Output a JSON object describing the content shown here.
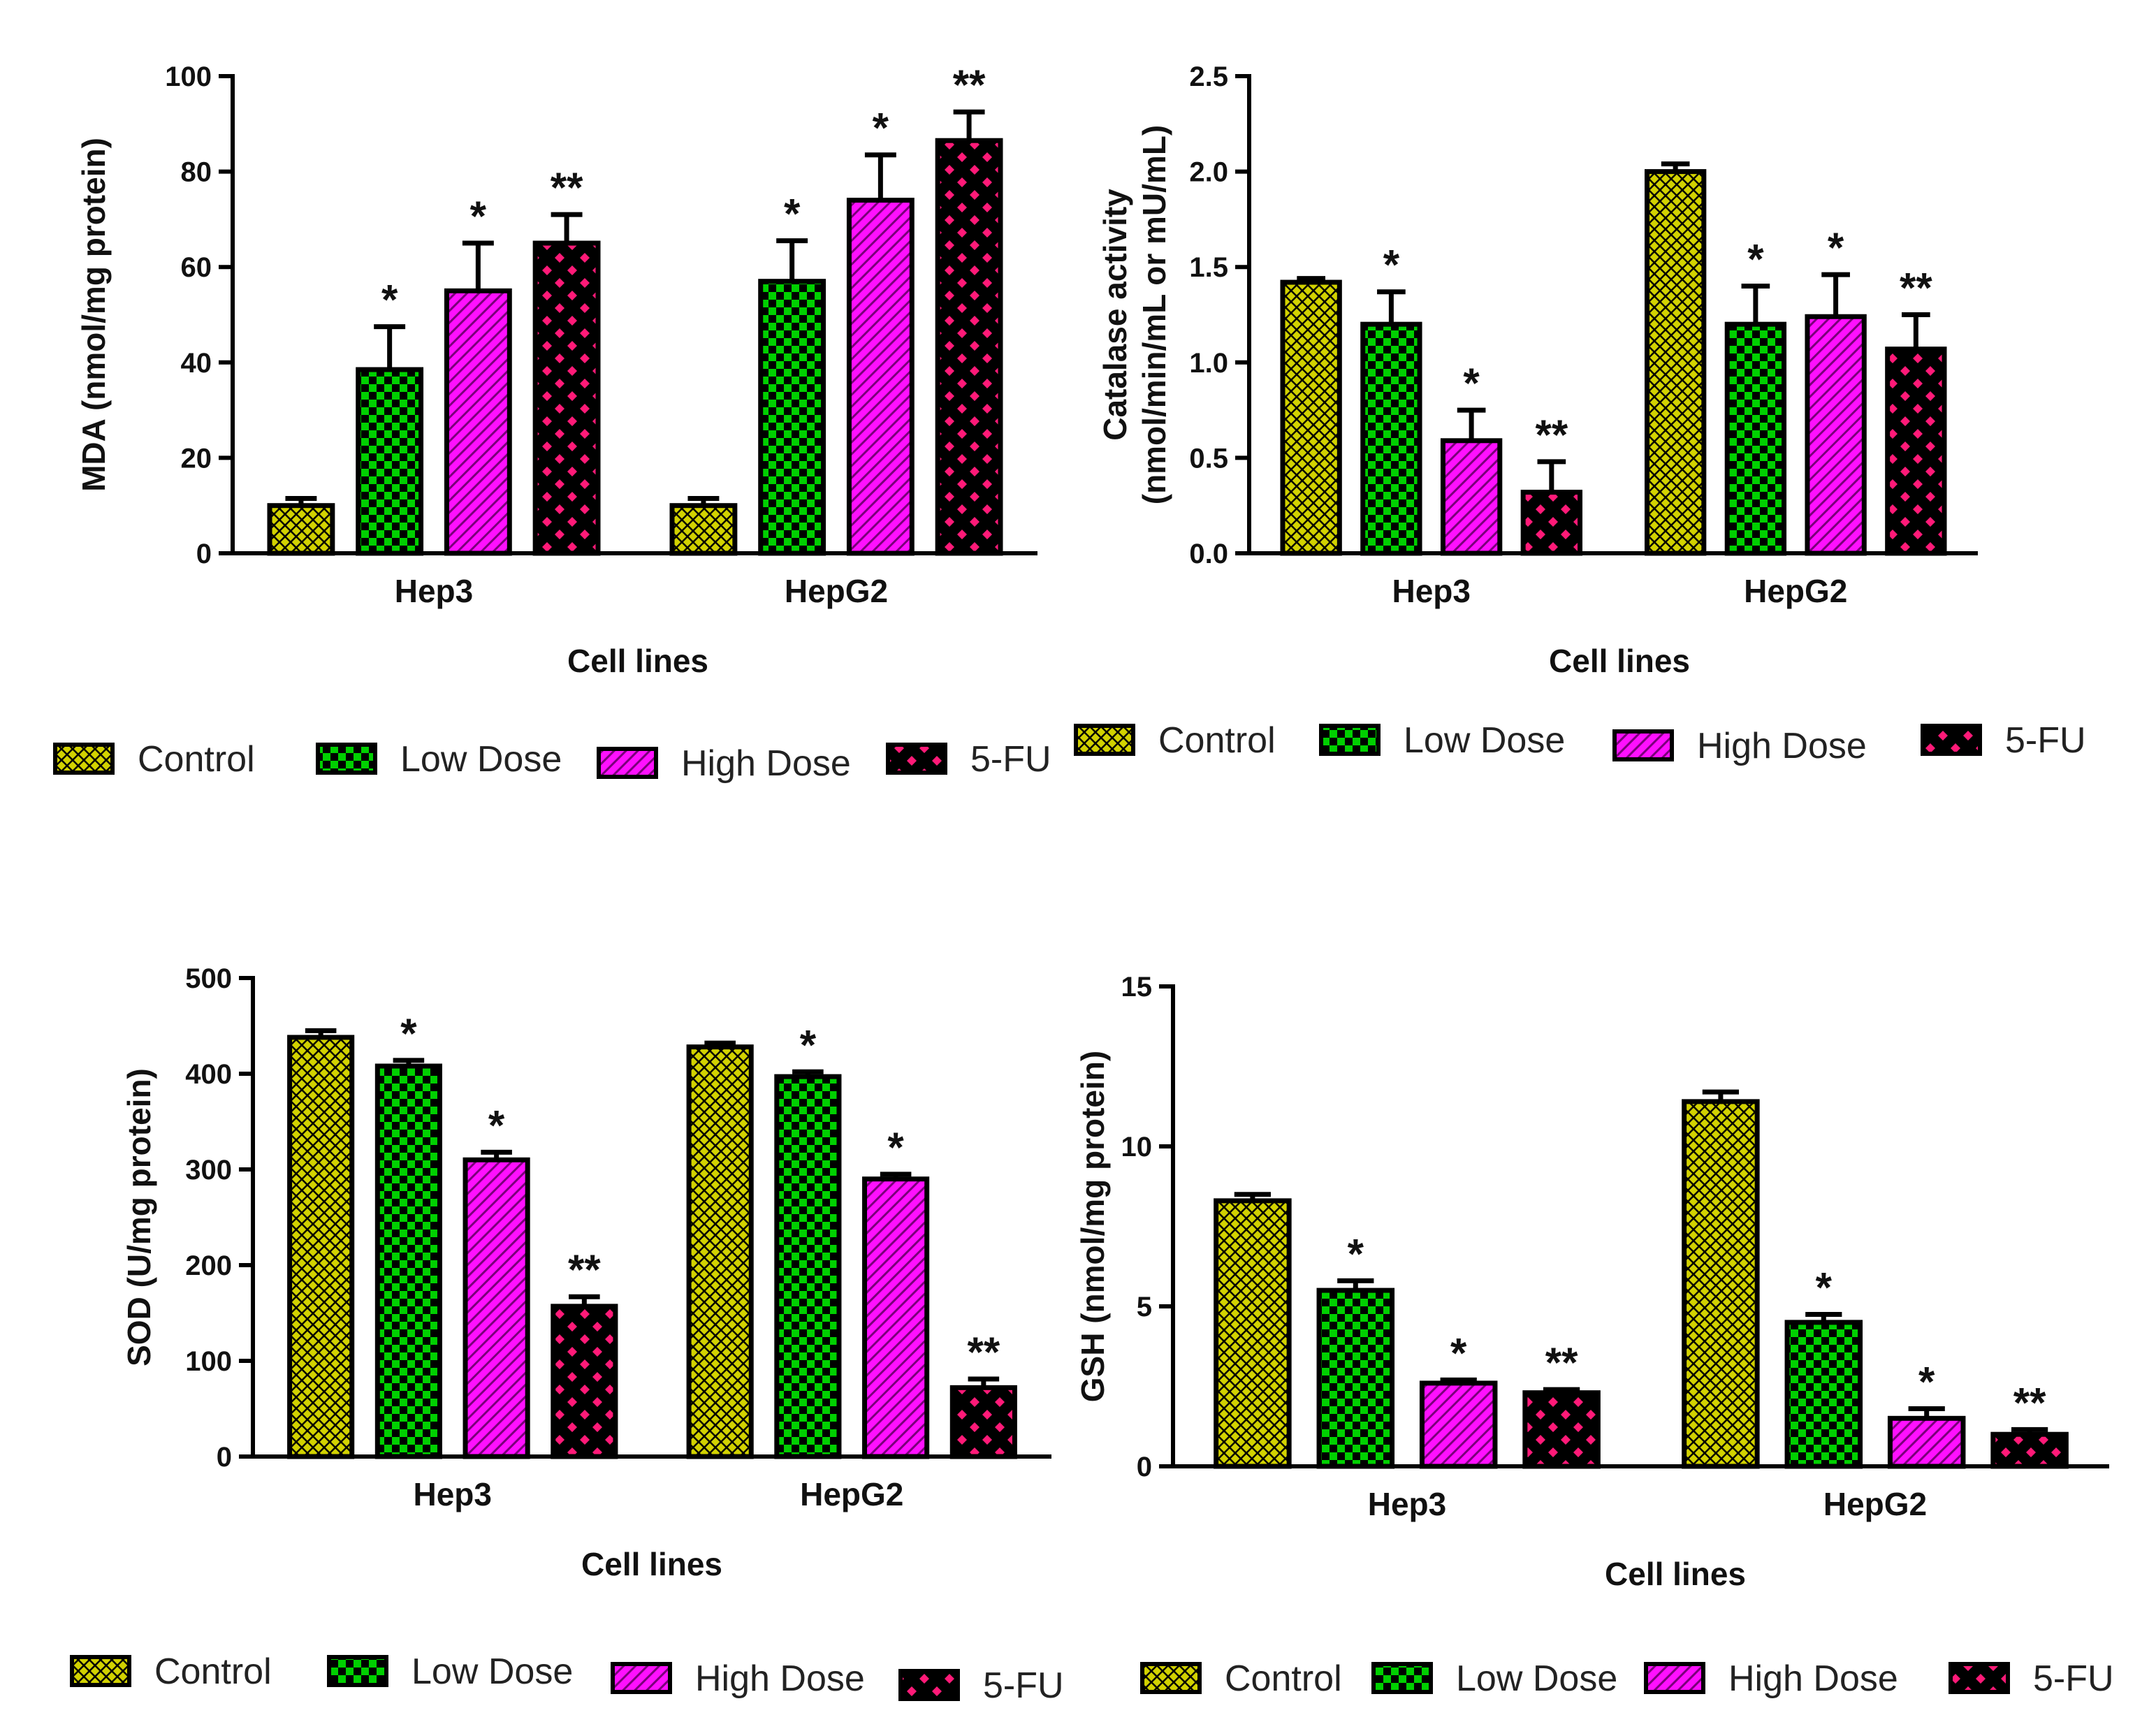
{
  "colors": {
    "control": "#d2d200",
    "low": "#00d000",
    "high": "#ff10ff",
    "fu": "#ff1a78"
  },
  "legend": [
    "Control",
    "Low Dose",
    "High Dose",
    "5-FU"
  ],
  "chart_data": [
    {
      "type": "bar",
      "title": "",
      "ylabel": [
        "MDA (nmol/mg protein)"
      ],
      "xlabel": "Cell lines",
      "categories": [
        "Hep3",
        "HepG2"
      ],
      "ylim": [
        0,
        100
      ],
      "yticks": [
        "0",
        "20",
        "40",
        "60",
        "80",
        "100"
      ],
      "series": [
        {
          "name": "Control",
          "values": [
            10,
            10
          ],
          "errors": [
            1.5,
            1.5
          ],
          "sig": [
            "",
            ""
          ]
        },
        {
          "name": "Low Dose",
          "values": [
            38.5,
            57
          ],
          "errors": [
            9,
            8.5
          ],
          "sig": [
            "*",
            "*"
          ]
        },
        {
          "name": "High Dose",
          "values": [
            55,
            74
          ],
          "errors": [
            10,
            9.5
          ],
          "sig": [
            "*",
            "*"
          ]
        },
        {
          "name": "5-FU",
          "values": [
            65,
            86.5
          ],
          "errors": [
            6,
            6
          ],
          "sig": [
            "**",
            "**"
          ]
        }
      ]
    },
    {
      "type": "bar",
      "title": "",
      "ylabel": [
        "Catalase activity",
        "(nmol/min/mL or mU/mL)"
      ],
      "xlabel": "Cell lines",
      "categories": [
        "Hep3",
        "HepG2"
      ],
      "ylim": [
        0,
        2.5
      ],
      "yticks": [
        "0.0",
        "0.5",
        "1.0",
        "1.5",
        "2.0",
        "2.5"
      ],
      "series": [
        {
          "name": "Control",
          "values": [
            1.42,
            2.0
          ],
          "errors": [
            0.02,
            0.04
          ],
          "sig": [
            "",
            ""
          ]
        },
        {
          "name": "Low Dose",
          "values": [
            1.2,
            1.2
          ],
          "errors": [
            0.17,
            0.2
          ],
          "sig": [
            "*",
            "*"
          ]
        },
        {
          "name": "High Dose",
          "values": [
            0.59,
            1.24
          ],
          "errors": [
            0.16,
            0.22
          ],
          "sig": [
            "*",
            "*"
          ]
        },
        {
          "name": "5-FU",
          "values": [
            0.32,
            1.07
          ],
          "errors": [
            0.16,
            0.18
          ],
          "sig": [
            "**",
            "**"
          ]
        }
      ]
    },
    {
      "type": "bar",
      "title": "",
      "ylabel": [
        "SOD (U/mg protein)"
      ],
      "xlabel": "Cell lines",
      "categories": [
        "Hep3",
        "HepG2"
      ],
      "ylim": [
        0,
        500
      ],
      "yticks": [
        "0",
        "100",
        "200",
        "300",
        "400",
        "500"
      ],
      "series": [
        {
          "name": "Control",
          "values": [
            438,
            428
          ],
          "errors": [
            7,
            4
          ],
          "sig": [
            "",
            ""
          ]
        },
        {
          "name": "Low Dose",
          "values": [
            408,
            397
          ],
          "errors": [
            6,
            5
          ],
          "sig": [
            "*",
            "*"
          ]
        },
        {
          "name": "High Dose",
          "values": [
            310,
            290
          ],
          "errors": [
            8,
            5
          ],
          "sig": [
            "*",
            "*"
          ]
        },
        {
          "name": "5-FU",
          "values": [
            157,
            72
          ],
          "errors": [
            10,
            9
          ],
          "sig": [
            "**",
            "**"
          ]
        }
      ]
    },
    {
      "type": "bar",
      "title": "",
      "ylabel": [
        "GSH  (nmol/mg protein)"
      ],
      "xlabel": "Cell lines",
      "categories": [
        "Hep3",
        "HepG2"
      ],
      "ylim": [
        0,
        15
      ],
      "yticks": [
        "0",
        "5",
        "10",
        "15"
      ],
      "series": [
        {
          "name": "Control",
          "values": [
            8.3,
            11.4
          ],
          "errors": [
            0.2,
            0.3
          ],
          "sig": [
            "",
            ""
          ]
        },
        {
          "name": "Low Dose",
          "values": [
            5.5,
            4.5
          ],
          "errors": [
            0.3,
            0.25
          ],
          "sig": [
            "*",
            "*"
          ]
        },
        {
          "name": "High Dose",
          "values": [
            2.6,
            1.5
          ],
          "errors": [
            0.1,
            0.3
          ],
          "sig": [
            "*",
            "*"
          ]
        },
        {
          "name": "5-FU",
          "values": [
            2.3,
            1.0
          ],
          "errors": [
            0.1,
            0.15
          ],
          "sig": [
            "**",
            "**"
          ]
        }
      ]
    }
  ]
}
